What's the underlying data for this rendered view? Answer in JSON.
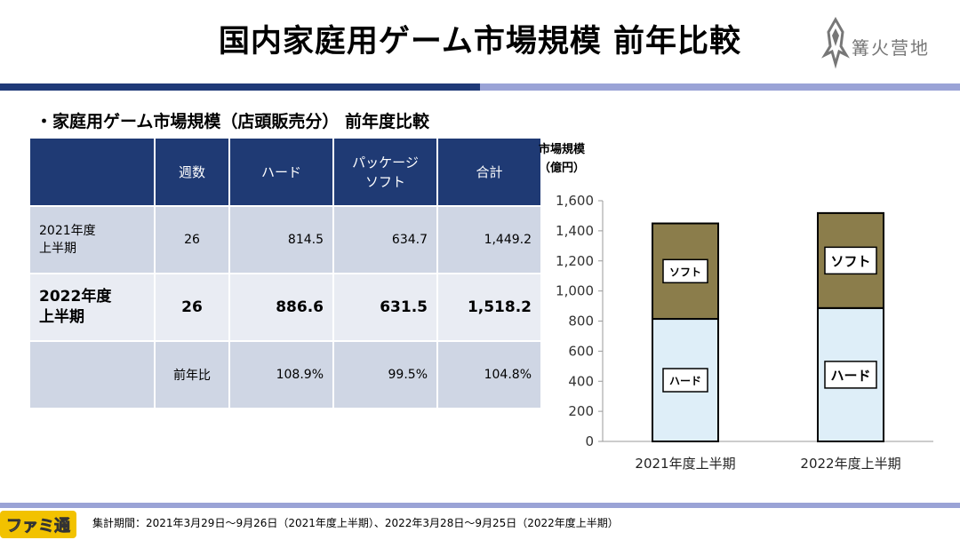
{
  "title": "国内家庭用ゲーム市場規模 前年比較",
  "brand": {
    "name": "篝火营地"
  },
  "subtitle": "・家庭用ゲーム市場規模（店頭販売分） 前年度比較",
  "table": {
    "headers": [
      "",
      "週数",
      "ハード",
      "パッケージ\nソフト",
      "合計"
    ],
    "rows": [
      {
        "label": "2021年度\n上半期",
        "weeks": "26",
        "hard": "814.5",
        "soft": "634.7",
        "total": "1,449.2"
      },
      {
        "label": "2022年度\n上半期",
        "weeks": "26",
        "hard": "886.6",
        "soft": "631.5",
        "total": "1,518.2"
      },
      {
        "label": "",
        "weeks": "前年比",
        "hard": "108.9%",
        "soft": "99.5%",
        "total": "104.8%"
      }
    ]
  },
  "chart_data": {
    "type": "bar",
    "stacked": true,
    "ylabel": "市場規模\n（億円）",
    "categories": [
      "2021年度上半期",
      "2022年度上半期"
    ],
    "series": [
      {
        "name": "ハード",
        "values": [
          814.5,
          886.6
        ],
        "color": "#deeef8"
      },
      {
        "name": "ソフト",
        "values": [
          634.7,
          631.5
        ],
        "color": "#8b7d4b"
      }
    ],
    "ylim": [
      0,
      1600
    ],
    "yticks": [
      "0",
      "200",
      "400",
      "600",
      "800",
      "1,000",
      "1,200",
      "1,400",
      "1,600"
    ],
    "grid": false
  },
  "footer": {
    "logo": "ファミ通",
    "note": "集計期間：2021年3月29日～9月26日（2021年度上半期）、2022年3月28日～9月25日（2022年度上半期）"
  },
  "colors": {
    "header": "#1f3a74",
    "stripe": "#9aa3d6",
    "stripe_dark": "#1f3a78",
    "soft": "#8b7d4b",
    "hard": "#deeef8"
  }
}
